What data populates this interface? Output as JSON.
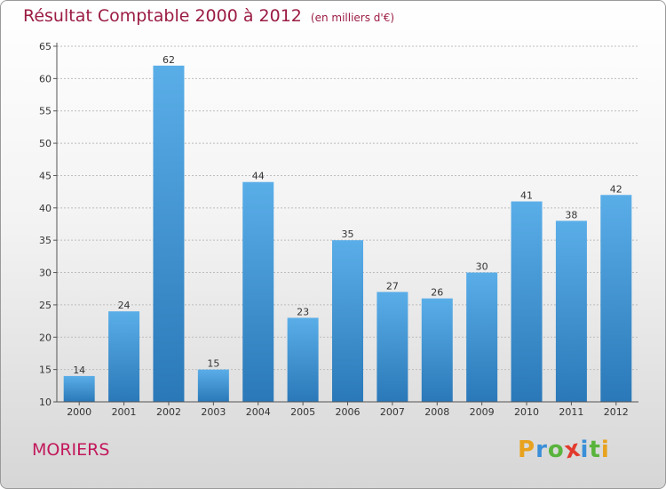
{
  "title": "Résultat Comptable 2000 à 2012",
  "subtitle": "(en milliers d'€)",
  "commune": "MORIERS",
  "logo": {
    "text": "Proxiti",
    "letters": [
      {
        "ch": "P",
        "color": "#e8a21d"
      },
      {
        "ch": "r",
        "color": "#3a8fd8"
      },
      {
        "ch": "o",
        "color": "#59b43c"
      },
      {
        "ch": "x",
        "color": "#e23a2e"
      },
      {
        "ch": "i",
        "color": "#3a8fd8"
      },
      {
        "ch": "t",
        "color": "#59b43c"
      },
      {
        "ch": "i",
        "color": "#e8a21d"
      }
    ]
  },
  "colors": {
    "title": "#9b1c43",
    "bar_light": "#5aaee8",
    "bar_dark": "#2a78b8",
    "grid": "#bdbdbd"
  },
  "chart_data": {
    "type": "bar",
    "title": "Résultat Comptable 2000 à 2012",
    "xlabel": "",
    "ylabel": "",
    "categories": [
      "2000",
      "2001",
      "2002",
      "2003",
      "2004",
      "2005",
      "2006",
      "2007",
      "2008",
      "2009",
      "2010",
      "2011",
      "2012"
    ],
    "values": [
      14,
      24,
      62,
      15,
      44,
      23,
      35,
      27,
      26,
      30,
      41,
      38,
      42
    ],
    "ylim": [
      10,
      65
    ],
    "yticks": [
      10,
      15,
      20,
      25,
      30,
      35,
      40,
      45,
      50,
      55,
      60,
      65
    ],
    "grid": true,
    "data_labels": true
  }
}
